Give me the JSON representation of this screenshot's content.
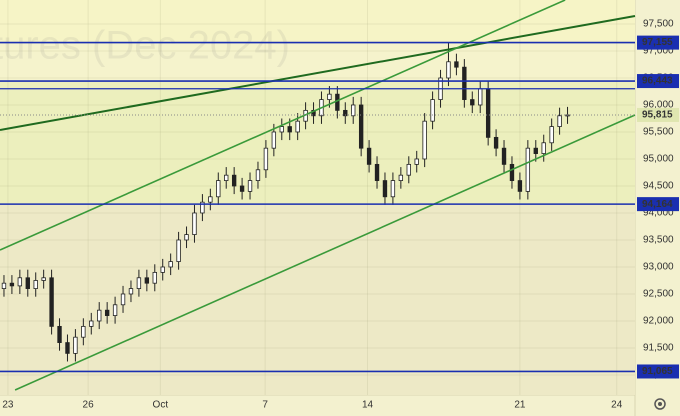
{
  "chart_data": {
    "type": "candlestick",
    "watermark": "tures (Dec 2024)",
    "xlim": [
      0,
      80
    ],
    "xticks": [
      {
        "value": 1.0,
        "label": "23"
      },
      {
        "value": 11.1,
        "label": "26"
      },
      {
        "value": 20.2,
        "label": "Oct"
      },
      {
        "value": 33.4,
        "label": "7"
      },
      {
        "value": 46.3,
        "label": "14"
      },
      {
        "value": 65.5,
        "label": "21"
      },
      {
        "value": 77.7,
        "label": "24"
      }
    ],
    "ylim": [
      90685,
      97944
    ],
    "yticks": [
      {
        "value": 91000,
        "label": "91,000"
      },
      {
        "value": 91500,
        "label": "91,500"
      },
      {
        "value": 92000,
        "label": "92,000"
      },
      {
        "value": 92500,
        "label": "92,500"
      },
      {
        "value": 93000,
        "label": "93,000"
      },
      {
        "value": 93500,
        "label": "93,500"
      },
      {
        "value": 94000,
        "label": "94,000"
      },
      {
        "value": 94500,
        "label": "94,500"
      },
      {
        "value": 95000,
        "label": "95,000"
      },
      {
        "value": 95500,
        "label": "95,500"
      },
      {
        "value": 96000,
        "label": "96,000"
      },
      {
        "value": 96500,
        "label": "96,500"
      },
      {
        "value": 97000,
        "label": "97,000"
      },
      {
        "value": 97500,
        "label": "97,500"
      }
    ],
    "grid": true,
    "up_color": "#ffffff",
    "down_color": "#222222",
    "open": [
      92600,
      92700,
      92650,
      92800,
      92600,
      92750,
      92800,
      91900,
      91600,
      91400,
      91700,
      91900,
      92000,
      92200,
      92100,
      92300,
      92500,
      92600,
      92800,
      92700,
      92900,
      93000,
      93100,
      93500,
      93600,
      94000,
      94200,
      94300,
      94600,
      94700,
      94500,
      94400,
      94600,
      94800,
      95200,
      95500,
      95600,
      95500,
      95700,
      95900,
      95800,
      96100,
      96200,
      95900,
      95800,
      96000,
      95200,
      94900,
      94600,
      94300,
      94600,
      94700,
      94900,
      95000,
      95700,
      96100,
      96500,
      96800,
      96700,
      96100,
      96000,
      96300,
      95400,
      95200,
      94900,
      94600,
      94400,
      95200,
      95100,
      95300,
      95600,
      95800
    ],
    "high": [
      92850,
      92850,
      92950,
      92950,
      92900,
      92950,
      92950,
      92050,
      91750,
      91850,
      92050,
      92150,
      92350,
      92350,
      92450,
      92650,
      92750,
      92950,
      92950,
      93050,
      93150,
      93250,
      93650,
      93750,
      94150,
      94350,
      94450,
      94750,
      94850,
      94850,
      94650,
      94750,
      94950,
      95350,
      95650,
      95750,
      95750,
      95850,
      96050,
      96050,
      96250,
      96350,
      96350,
      96050,
      96150,
      96150,
      95350,
      95050,
      94750,
      94750,
      94850,
      95050,
      95150,
      95850,
      96250,
      96650,
      97150,
      96950,
      96850,
      96250,
      96450,
      96450,
      95550,
      95350,
      95050,
      94750,
      95350,
      95350,
      95450,
      95750,
      95950,
      95965
    ],
    "low": [
      92450,
      92500,
      92500,
      92450,
      92450,
      92600,
      91750,
      91450,
      91250,
      91250,
      91550,
      91750,
      91850,
      91950,
      91950,
      92150,
      92350,
      92450,
      92550,
      92550,
      92750,
      92850,
      92950,
      93350,
      93450,
      93850,
      94050,
      94150,
      94450,
      94350,
      94250,
      94250,
      94450,
      94650,
      95050,
      95350,
      95350,
      95350,
      95550,
      95650,
      95650,
      95950,
      95750,
      95650,
      95650,
      95050,
      94750,
      94450,
      94150,
      94150,
      94450,
      94550,
      94750,
      94850,
      95550,
      95950,
      96350,
      96550,
      95950,
      95850,
      95850,
      95250,
      95050,
      94750,
      94450,
      94250,
      94250,
      94950,
      94950,
      95150,
      95450,
      95650
    ],
    "close": [
      92700,
      92650,
      92800,
      92600,
      92750,
      92800,
      91900,
      91600,
      91400,
      91700,
      91900,
      92000,
      92200,
      92100,
      92300,
      92500,
      92600,
      92800,
      92700,
      92900,
      93000,
      93100,
      93500,
      93600,
      94000,
      94200,
      94300,
      94600,
      94700,
      94500,
      94400,
      94600,
      94800,
      95200,
      95500,
      95600,
      95500,
      95700,
      95900,
      95800,
      96100,
      96200,
      95900,
      95800,
      96000,
      95200,
      94900,
      94600,
      94300,
      94600,
      94700,
      94900,
      95000,
      95700,
      96100,
      96500,
      96800,
      96700,
      96100,
      96000,
      96300,
      95400,
      95200,
      94900,
      94600,
      94400,
      95200,
      95100,
      95300,
      95600,
      95800,
      95815
    ],
    "levels": [
      {
        "value": 97155,
        "label": "97,155"
      },
      {
        "value": 96443,
        "label": "96,443"
      },
      {
        "value": 94164,
        "label": "94,164"
      },
      {
        "value": 91065,
        "label": "91,065"
      }
    ],
    "unlabeled_levels": [
      96300
    ],
    "level_color": "#1a2fb0",
    "last_price": {
      "value": 95815,
      "label": "95,815"
    },
    "trendlines": [
      {
        "color": "#1f6a1f",
        "x": [
          0,
          80
        ],
        "y": [
          95537,
          97648
        ]
      },
      {
        "color": "#3a9a3a",
        "x": [
          0,
          71.2
        ],
        "y": [
          93315,
          97944
        ]
      },
      {
        "color": "#3a9a3a",
        "x": [
          1.9,
          80
        ],
        "y": [
          90722,
          95815
        ]
      }
    ]
  }
}
